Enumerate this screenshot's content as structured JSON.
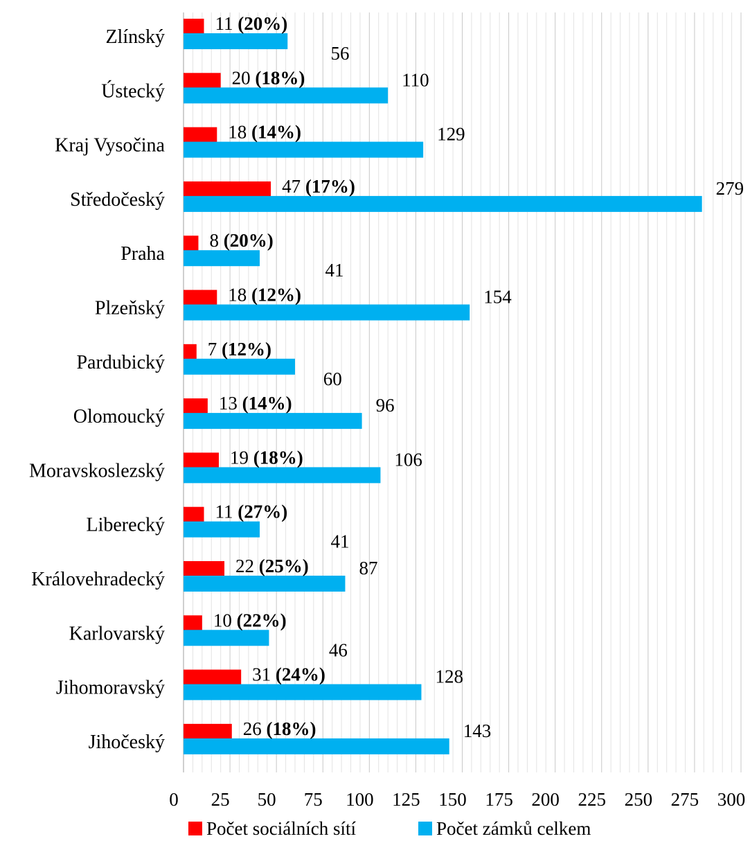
{
  "chart_data": {
    "type": "bar",
    "orientation": "horizontal",
    "title": "",
    "xlabel": "",
    "ylabel": "",
    "xlim": [
      0,
      300
    ],
    "x_ticks": [
      "0",
      "25",
      "50",
      "75",
      "100",
      "125",
      "150",
      "175",
      "200",
      "225",
      "250",
      "275",
      "300"
    ],
    "grid": "vertical",
    "legend_position": "bottom",
    "categories": [
      "Zlínský",
      "Ústecký",
      "Kraj Vysočina",
      "Středočeský",
      "Praha",
      "Plzeňský",
      "Pardubický",
      "Olomoucký",
      "Moravskoslezský",
      "Liberecký",
      "Královehradecký",
      "Karlovarský",
      "Jihomoravský",
      "Jihočeský"
    ],
    "series": [
      {
        "name": "Počet sociálních sítí",
        "color": "#ff0000",
        "values": [
          11,
          20,
          18,
          47,
          8,
          18,
          7,
          13,
          19,
          11,
          22,
          10,
          31,
          26
        ],
        "labels": [
          "11",
          "20",
          "18",
          "47",
          "8",
          "18",
          "7",
          "13",
          "19",
          "11",
          "22",
          "10",
          "31",
          "26"
        ],
        "percent_labels": [
          "(20%)",
          "(18%)",
          "(14%)",
          "(17%)",
          "(20%)",
          "(12%)",
          "(12%)",
          "(14%)",
          "(18%)",
          "(27%)",
          "(25%)",
          "(22%)",
          "(24%)",
          "(18%)"
        ]
      },
      {
        "name": "Počet zámků celkem",
        "color": "#00b0f0",
        "values": [
          56,
          110,
          129,
          279,
          41,
          154,
          60,
          96,
          106,
          41,
          87,
          46,
          128,
          143
        ],
        "labels": [
          "56",
          "110",
          "129",
          "279",
          "41",
          "154",
          "60",
          "96",
          "106",
          "41",
          "87",
          "46",
          "128",
          "143"
        ]
      }
    ]
  }
}
